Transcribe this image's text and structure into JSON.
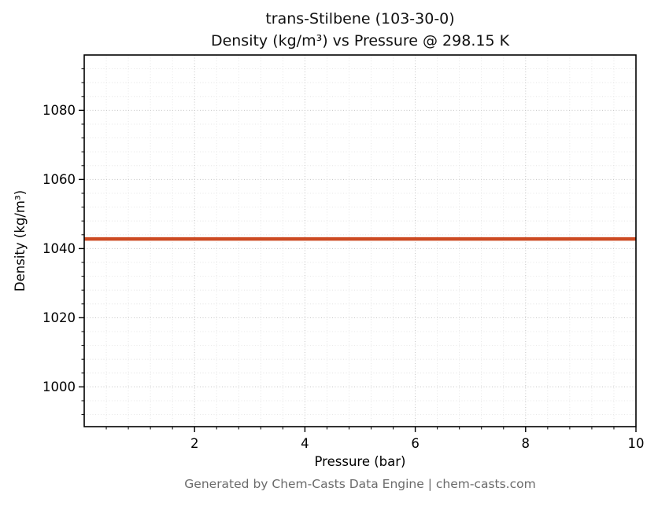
{
  "title": {
    "line1": "trans-Stilbene (103-30-0)",
    "line2": "Density (kg/m³) vs Pressure @ 298.15 K"
  },
  "footer": "Generated by Chem-Casts Data Engine | chem-casts.com",
  "colors": {
    "line": "#cc4a22",
    "grid_major": "#c4c4c4",
    "grid_minor": "#e0e0e0",
    "axis": "#000000",
    "tick_label": "#000000",
    "footer_text": "#6b6b6b"
  },
  "chart_data": {
    "type": "line",
    "title": "trans-Stilbene (103-30-0) — Density (kg/m³) vs Pressure @ 298.15 K",
    "xlabel": "Pressure (bar)",
    "ylabel": "Density (kg/m³)",
    "xlim": [
      0,
      10
    ],
    "ylim": [
      988.5,
      1096
    ],
    "xticks": [
      2,
      4,
      6,
      8,
      10
    ],
    "yticks": [
      1000,
      1020,
      1040,
      1060,
      1080
    ],
    "minor_x_step": 0.4,
    "minor_y_step": 4,
    "grid": true,
    "legend_position": "none",
    "series": [
      {
        "name": "Density at 298.15 K",
        "color": "#cc4a22",
        "x": [
          0,
          1,
          2,
          3,
          4,
          5,
          6,
          7,
          8,
          9,
          10
        ],
        "y": [
          1042.8,
          1042.8,
          1042.8,
          1042.8,
          1042.8,
          1042.8,
          1042.8,
          1042.8,
          1042.8,
          1042.8,
          1042.8
        ]
      }
    ]
  }
}
